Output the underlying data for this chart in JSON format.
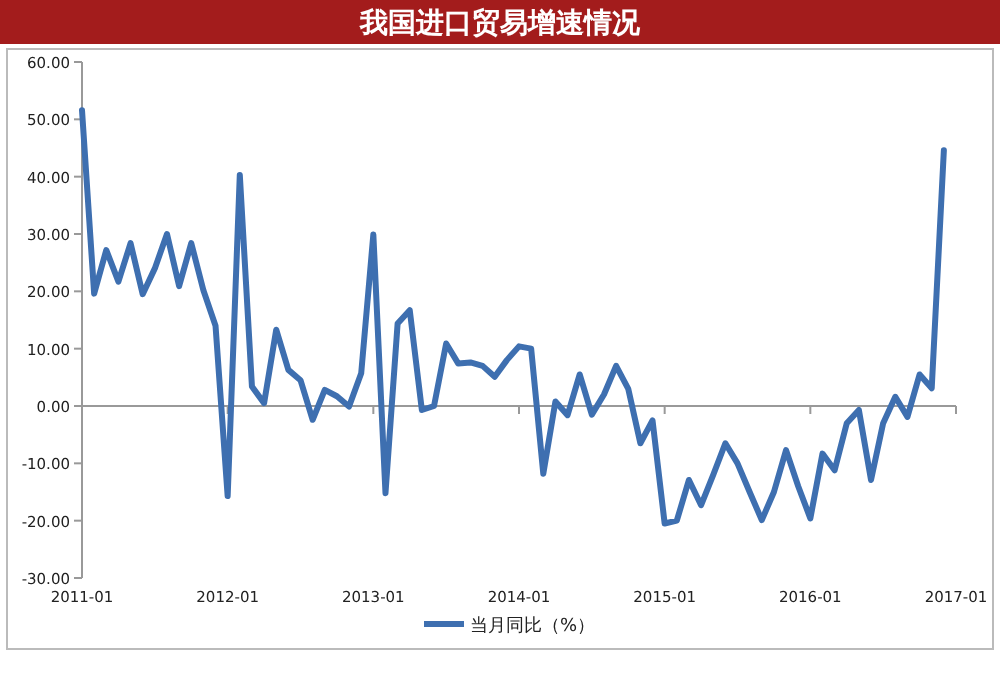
{
  "chart_data": {
    "type": "line",
    "title": "我国进口贸易增速情况",
    "x": [
      "2011-01",
      "2011-02",
      "2011-03",
      "2011-04",
      "2011-05",
      "2011-06",
      "2011-07",
      "2011-08",
      "2011-09",
      "2011-10",
      "2011-11",
      "2011-12",
      "2012-01",
      "2012-02",
      "2012-03",
      "2012-04",
      "2012-05",
      "2012-06",
      "2012-07",
      "2012-08",
      "2012-09",
      "2012-10",
      "2012-11",
      "2012-12",
      "2013-01",
      "2013-02",
      "2013-03",
      "2013-04",
      "2013-05",
      "2013-06",
      "2013-07",
      "2013-08",
      "2013-09",
      "2013-10",
      "2013-11",
      "2013-12",
      "2014-01",
      "2014-02",
      "2014-03",
      "2014-04",
      "2014-05",
      "2014-06",
      "2014-07",
      "2014-08",
      "2014-09",
      "2014-10",
      "2014-11",
      "2014-12",
      "2015-01",
      "2015-02",
      "2015-03",
      "2015-04",
      "2015-05",
      "2015-06",
      "2015-07",
      "2015-08",
      "2015-09",
      "2015-10",
      "2015-11",
      "2015-12",
      "2016-01",
      "2016-02",
      "2016-03",
      "2016-04",
      "2016-05",
      "2016-06",
      "2016-07",
      "2016-08",
      "2016-09",
      "2016-10",
      "2016-11",
      "2016-12"
    ],
    "series": [
      {
        "name": "当月同比（%）",
        "color": "#3e6fb0",
        "values": [
          51.6,
          19.6,
          27.2,
          21.7,
          28.4,
          19.5,
          24,
          30,
          20.9,
          28.4,
          20.2,
          14,
          -15.7,
          40.3,
          3.4,
          0.5,
          13.3,
          6.3,
          4.5,
          -2.4,
          2.8,
          1.7,
          -0.1,
          5.7,
          29.9,
          -15.2,
          14.4,
          16.7,
          -0.7,
          0,
          10.9,
          7.4,
          7.6,
          7,
          5.1,
          8,
          10.4,
          10,
          -11.8,
          0.8,
          -1.6,
          5.5,
          -1.5,
          2,
          7,
          3,
          -6.5,
          -2.5,
          -20.5,
          -20,
          -12.9,
          -17.3,
          -12,
          -6.5,
          -10,
          -15,
          -19.9,
          -15,
          -7.7,
          -14,
          -19.6,
          -8.3,
          -11.2,
          -3,
          -0.7,
          -12.9,
          -3,
          1.6,
          -1.9,
          5.5,
          3.1,
          44.6
        ]
      }
    ],
    "xlim": [
      "2011-01",
      "2017-01"
    ],
    "xticks": [
      "2011-01",
      "2012-01",
      "2013-01",
      "2014-01",
      "2015-01",
      "2016-01",
      "2017-01"
    ],
    "ylim": [
      -30,
      60
    ],
    "yticks": [
      {
        "value": -30,
        "label": "-30.00"
      },
      {
        "value": -20,
        "label": "-20.00"
      },
      {
        "value": -10,
        "label": "-10.00"
      },
      {
        "value": 0,
        "label": "0.00"
      },
      {
        "value": 10,
        "label": "10.00"
      },
      {
        "value": 20,
        "label": "20.00"
      },
      {
        "value": 30,
        "label": "30.00"
      },
      {
        "value": 40,
        "label": "40.00"
      },
      {
        "value": 50,
        "label": "50.00"
      },
      {
        "value": 60,
        "label": "60.00"
      }
    ],
    "legend": "bottom",
    "marker": "none",
    "line_style": "solid"
  }
}
